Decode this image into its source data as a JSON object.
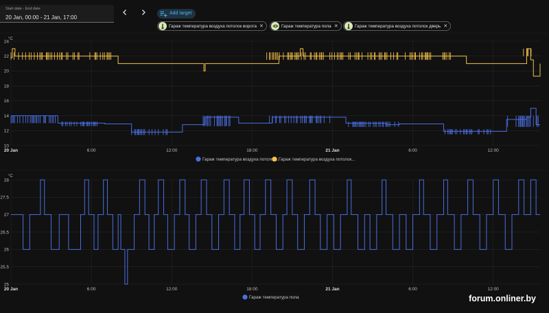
{
  "date_picker": {
    "label": "Start date - End date",
    "value": "20 Jan, 00:00 - 21 Jan, 17:00"
  },
  "nav": {
    "prev_icon": "chevron-left-icon",
    "next_icon": "chevron-right-icon"
  },
  "add_target": {
    "label": "Add target",
    "icon": "playlist-add-icon"
  },
  "chips": [
    {
      "label": "Гараж температура воздуха потолок ворота",
      "icon": "thermometer-icon"
    },
    {
      "label": "Гараж температура пола",
      "icon": "eye-icon"
    },
    {
      "label": "Гараж температура воздуха потолок дверь",
      "icon": "thermometer-icon"
    }
  ],
  "watermark": "forum.onliner.by",
  "colors": {
    "orange": "#f5c24a",
    "blue": "#4a6fe3",
    "grid": "#2a2a2a",
    "background": "#111111"
  },
  "chart_data": [
    {
      "type": "line",
      "unit": "°C",
      "ylim": [
        10,
        24
      ],
      "yticks": [
        "24",
        "22",
        "20",
        "18",
        "16",
        "14",
        "12",
        "10"
      ],
      "x_tick_labels": [
        "20 Jan",
        "6:00",
        "12:00",
        "18:00",
        "21 Jan",
        "6:00",
        "12:00"
      ],
      "x_tick_hours": [
        0,
        6,
        12,
        18,
        24,
        30,
        36
      ],
      "xlim_hours": [
        0,
        39.5
      ],
      "legend": [
        {
          "name": "Гараж температура воздуха потолок...",
          "color": "#4a6fe3"
        },
        {
          "name": "Гараж температура воздуха потолок...",
          "color": "#f5c24a"
        }
      ],
      "series": [
        {
          "name": "Гараж температура воздуха потолок ворота",
          "color": "#4a6fe3",
          "points": [
            [
              0,
              14
            ],
            [
              3.5,
              13
            ],
            [
              7,
              12.9
            ],
            [
              8.5,
              12.9
            ],
            [
              9,
              11.8
            ],
            [
              12.5,
              11.8
            ],
            [
              12.8,
              12.8
            ],
            [
              14,
              12.8
            ],
            [
              14.5,
              13.8
            ],
            [
              16.5,
              13.8
            ],
            [
              17,
              13
            ],
            [
              19,
              13
            ],
            [
              19.5,
              13.8
            ],
            [
              24,
              13.8
            ],
            [
              25,
              13
            ],
            [
              28,
              12.8
            ],
            [
              29,
              12.9
            ],
            [
              32,
              12.9
            ],
            [
              32.3,
              11.9
            ],
            [
              36.5,
              11.9
            ],
            [
              37,
              13.5
            ],
            [
              38.5,
              13.8
            ],
            [
              38.8,
              15
            ],
            [
              39.2,
              12.8
            ],
            [
              39.5,
              12.8
            ]
          ],
          "noise": [
            [
              0,
              3.5,
              13,
              14
            ],
            [
              3.5,
              6.5,
              12.6,
              13.2
            ],
            [
              9,
              11.7,
              11.4,
              12.2
            ],
            [
              14.2,
              16.4,
              12.6,
              14
            ],
            [
              19.2,
              24,
              13,
              14
            ],
            [
              25.2,
              29,
              12.5,
              13.2
            ],
            [
              32.4,
              36,
              11.5,
              12.2
            ],
            [
              37,
              39.5,
              12.5,
              14
            ]
          ]
        },
        {
          "name": "Гараж температура воздуха потолок дверь",
          "color": "#f5c24a",
          "points": [
            [
              0,
              21.8
            ],
            [
              0.1,
              23
            ],
            [
              0.3,
              22
            ],
            [
              7.5,
              22
            ],
            [
              8,
              21
            ],
            [
              14.2,
              21
            ],
            [
              14.4,
              20
            ],
            [
              14.5,
              21
            ],
            [
              19,
              21
            ],
            [
              20,
              22
            ],
            [
              21.5,
              22
            ],
            [
              21.6,
              23
            ],
            [
              21.8,
              22
            ],
            [
              25,
              22
            ],
            [
              33,
              22
            ],
            [
              34,
              21
            ],
            [
              38.3,
              21
            ],
            [
              38.5,
              23
            ],
            [
              38.8,
              21.5
            ],
            [
              39,
              19.3
            ],
            [
              39.5,
              21
            ]
          ],
          "noise": [
            [
              0,
              7.5,
              21.5,
              22.5
            ],
            [
              19,
              25,
              21.5,
              22.5
            ],
            [
              25,
              33,
              21.5,
              22.5
            ],
            [
              38.2,
              39,
              22,
              23
            ]
          ]
        }
      ]
    },
    {
      "type": "line",
      "unit": "°C",
      "ylim": [
        25,
        28
      ],
      "yticks": [
        "28",
        "27.5",
        "27",
        "26.5",
        "26",
        "25.5",
        "25"
      ],
      "x_tick_labels": [
        "20 Jan",
        "6:00",
        "12:00",
        "18:00",
        "21 Jan",
        "6:00",
        "12:00"
      ],
      "x_tick_hours": [
        0,
        6,
        12,
        18,
        24,
        30,
        36
      ],
      "xlim_hours": [
        0,
        39.5
      ],
      "legend": [
        {
          "name": "Гараж температура пола",
          "color": "#4a6fe3"
        }
      ],
      "series": [
        {
          "name": "Гараж температура пола",
          "color": "#4a6fe3",
          "values_set": [
            26,
            27,
            28,
            25
          ],
          "points": [
            [
              0,
              27
            ],
            [
              0.9,
              27
            ],
            [
              0.9,
              26
            ],
            [
              1.4,
              26
            ],
            [
              1.4,
              27
            ],
            [
              2.2,
              27
            ],
            [
              2.2,
              28
            ],
            [
              2.5,
              28
            ],
            [
              2.5,
              27
            ],
            [
              3,
              27
            ],
            [
              3,
              26
            ],
            [
              3.6,
              26
            ],
            [
              3.6,
              27
            ],
            [
              4.3,
              27
            ],
            [
              4.3,
              26
            ],
            [
              5.2,
              26
            ],
            [
              5.2,
              27
            ],
            [
              5.5,
              27
            ],
            [
              5.5,
              28
            ],
            [
              5.8,
              28
            ],
            [
              5.8,
              27
            ],
            [
              6.2,
              27
            ],
            [
              6.2,
              26
            ],
            [
              6.5,
              26
            ],
            [
              6.5,
              27
            ],
            [
              6.9,
              27
            ],
            [
              6.9,
              28
            ],
            [
              7.2,
              28
            ],
            [
              7.2,
              27
            ],
            [
              7.6,
              27
            ],
            [
              7.6,
              26
            ],
            [
              8,
              26
            ],
            [
              8,
              27
            ],
            [
              8.2,
              27
            ],
            [
              8.2,
              26
            ],
            [
              8.5,
              26
            ],
            [
              8.5,
              25
            ],
            [
              8.7,
              25
            ],
            [
              8.7,
              26
            ],
            [
              9.2,
              26
            ],
            [
              9.2,
              27
            ],
            [
              9.6,
              27
            ],
            [
              9.6,
              28
            ],
            [
              10,
              28
            ],
            [
              10,
              27
            ],
            [
              10.3,
              27
            ],
            [
              10.3,
              26
            ],
            [
              10.7,
              26
            ],
            [
              10.7,
              27
            ],
            [
              11,
              27
            ],
            [
              11,
              28
            ],
            [
              11.4,
              28
            ],
            [
              11.4,
              27
            ],
            [
              11.7,
              27
            ],
            [
              11.7,
              26
            ],
            [
              12.2,
              26
            ],
            [
              12.2,
              27
            ],
            [
              12.6,
              27
            ],
            [
              12.6,
              28
            ],
            [
              13,
              28
            ],
            [
              13,
              27
            ],
            [
              13.3,
              27
            ],
            [
              13.3,
              26
            ],
            [
              13.8,
              26
            ],
            [
              13.8,
              27
            ],
            [
              14.2,
              27
            ],
            [
              14.2,
              28
            ],
            [
              14.6,
              28
            ],
            [
              14.6,
              27
            ],
            [
              15,
              27
            ],
            [
              15,
              26
            ],
            [
              15.5,
              26
            ],
            [
              15.5,
              27
            ],
            [
              15.9,
              27
            ],
            [
              15.9,
              28
            ],
            [
              16.3,
              28
            ],
            [
              16.3,
              27
            ],
            [
              16.7,
              27
            ],
            [
              16.7,
              26
            ],
            [
              17.1,
              26
            ],
            [
              17.1,
              27
            ],
            [
              17.4,
              27
            ],
            [
              17.4,
              28
            ],
            [
              17.8,
              28
            ],
            [
              17.8,
              27
            ],
            [
              18.2,
              27
            ],
            [
              18.2,
              26
            ],
            [
              18.6,
              26
            ],
            [
              18.6,
              27
            ],
            [
              19,
              27
            ],
            [
              19,
              28
            ],
            [
              19.4,
              28
            ],
            [
              19.4,
              27
            ],
            [
              19.8,
              27
            ],
            [
              19.8,
              26
            ],
            [
              20.3,
              26
            ],
            [
              20.3,
              27
            ],
            [
              20.6,
              27
            ],
            [
              20.6,
              28
            ],
            [
              21,
              28
            ],
            [
              21,
              27
            ],
            [
              21.4,
              27
            ],
            [
              21.4,
              26
            ],
            [
              21.9,
              26
            ],
            [
              21.9,
              27
            ],
            [
              22.3,
              27
            ],
            [
              22.3,
              28
            ],
            [
              22.7,
              28
            ],
            [
              22.7,
              27
            ],
            [
              23.1,
              27
            ],
            [
              23.1,
              26
            ],
            [
              23.6,
              26
            ],
            [
              23.6,
              27
            ],
            [
              24.1,
              27
            ],
            [
              24.1,
              26
            ],
            [
              24.6,
              26
            ],
            [
              24.6,
              27
            ],
            [
              25.1,
              27
            ],
            [
              25.1,
              28
            ],
            [
              25.4,
              28
            ],
            [
              25.4,
              27
            ],
            [
              25.9,
              27
            ],
            [
              25.9,
              26
            ],
            [
              26.4,
              26
            ],
            [
              26.4,
              27
            ],
            [
              26.8,
              27
            ],
            [
              26.8,
              26
            ],
            [
              27.3,
              26
            ],
            [
              27.3,
              27
            ],
            [
              27.7,
              27
            ],
            [
              27.7,
              28
            ],
            [
              28,
              28
            ],
            [
              28,
              27
            ],
            [
              28.5,
              27
            ],
            [
              28.5,
              26
            ],
            [
              29,
              26
            ],
            [
              29,
              27
            ],
            [
              29.5,
              27
            ],
            [
              29.5,
              26
            ],
            [
              30,
              26
            ],
            [
              30,
              27
            ],
            [
              30.5,
              27
            ],
            [
              30.5,
              28
            ],
            [
              30.8,
              28
            ],
            [
              30.8,
              27
            ],
            [
              31.3,
              27
            ],
            [
              31.3,
              26
            ],
            [
              31.8,
              26
            ],
            [
              31.8,
              27
            ],
            [
              32.3,
              27
            ],
            [
              32.3,
              28
            ],
            [
              32.6,
              28
            ],
            [
              32.6,
              27
            ],
            [
              33.1,
              27
            ],
            [
              33.1,
              26
            ],
            [
              33.6,
              26
            ],
            [
              33.6,
              27
            ],
            [
              34.1,
              27
            ],
            [
              34.1,
              28
            ],
            [
              34.5,
              28
            ],
            [
              34.5,
              27
            ],
            [
              35,
              27
            ],
            [
              35,
              26
            ],
            [
              35.5,
              26
            ],
            [
              35.5,
              27
            ],
            [
              36,
              27
            ],
            [
              36,
              28
            ],
            [
              36.4,
              28
            ],
            [
              36.4,
              27
            ],
            [
              36.9,
              27
            ],
            [
              36.9,
              26
            ],
            [
              37.4,
              26
            ],
            [
              37.4,
              27
            ],
            [
              37.9,
              27
            ],
            [
              37.9,
              28
            ],
            [
              38.3,
              28
            ],
            [
              38.3,
              27
            ],
            [
              38.8,
              27
            ],
            [
              38.8,
              28
            ],
            [
              39.2,
              28
            ],
            [
              39.2,
              27
            ],
            [
              39.5,
              27
            ]
          ]
        }
      ]
    }
  ]
}
